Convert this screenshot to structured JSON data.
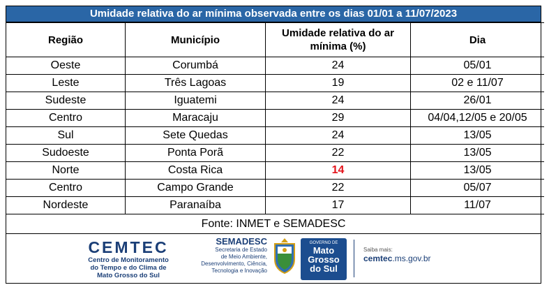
{
  "title": "Umidade relativa do ar mínima observada entre os dias 01/01 a 11/07/2023",
  "headers": {
    "regiao": "Região",
    "municipio": "Município",
    "umidade_line1": "Umidade relativa do ar",
    "umidade_line2": "mínima (%)",
    "dia": "Dia"
  },
  "rows": [
    {
      "regiao": "Oeste",
      "municipio": "Corumbá",
      "umidade": "24",
      "dia": "05/01"
    },
    {
      "regiao": "Leste",
      "municipio": "Três Lagoas",
      "umidade": "19",
      "dia": "02 e 11/07"
    },
    {
      "regiao": "Sudeste",
      "municipio": "Iguatemi",
      "umidade": "24",
      "dia": "26/01"
    },
    {
      "regiao": "Centro",
      "municipio": "Maracaju",
      "umidade": "29",
      "dia": "04/04,12/05 e 20/05"
    },
    {
      "regiao": "Sul",
      "municipio": "Sete Quedas",
      "umidade": "24",
      "dia": "13/05"
    },
    {
      "regiao": "Sudoeste",
      "municipio": "Ponta Porã",
      "umidade": "22",
      "dia": "13/05"
    },
    {
      "regiao": "Norte",
      "municipio": "Costa Rica",
      "umidade": "14",
      "dia": "13/05",
      "highlight": true
    },
    {
      "regiao": "Centro",
      "municipio": "Campo Grande",
      "umidade": "22",
      "dia": "05/07"
    },
    {
      "regiao": "Nordeste",
      "municipio": "Paranaíba",
      "umidade": "17",
      "dia": "11/07"
    }
  ],
  "source": "Fonte: INMET e SEMADESC",
  "footer": {
    "cemtec_name": "CEMTEC",
    "cemtec_line1": "Centro de Monitoramento",
    "cemtec_line2": "do Tempo e do Clima de",
    "cemtec_line3": "Mato Grosso do Sul",
    "semadesc_name": "SEMADESC",
    "semadesc_line1": "Secretaria de Estado",
    "semadesc_line2": "de Meio Ambiente,",
    "semadesc_line3": "Desenvolvimento, Ciência,",
    "semadesc_line4": "Tecnologia e Inovação",
    "gov_small": "GOVERNO DE",
    "gov_line1": "Mato",
    "gov_line2": "Grosso",
    "gov_line3": "do Sul",
    "saiba_label": "Saiba mais:",
    "url_bold": "cemtec",
    "url_rest": ".ms.gov.br"
  },
  "colors": {
    "title_bg": "#2a66a6",
    "highlight": "#e3141b",
    "brand": "#1b3f77"
  }
}
